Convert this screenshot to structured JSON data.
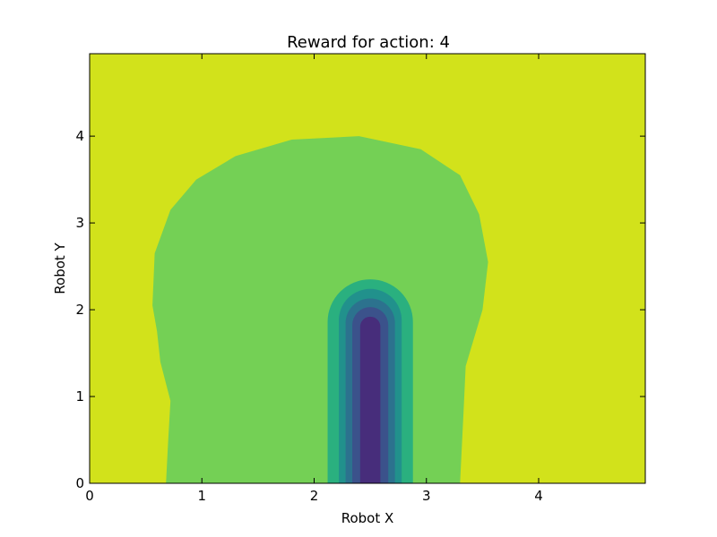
{
  "chart_data": {
    "type": "heatmap",
    "title": "Reward for action: 4",
    "xlabel": "Robot X",
    "ylabel": "Robot Y",
    "xlim": [
      0,
      4.95
    ],
    "ylim": [
      0,
      4.95
    ],
    "xticks": [
      0,
      1,
      2,
      3,
      4
    ],
    "yticks": [
      0,
      1,
      2,
      3,
      4
    ],
    "grid": false,
    "colors": {
      "background": "#d2e21b",
      "mid": "#74d055",
      "band1": "#2ab07f",
      "band2": "#21918c",
      "band3": "#2c728e",
      "band4": "#3b528b",
      "core": "#472d7b"
    },
    "regions": {
      "mid_boundary": [
        [
          0.68,
          0
        ],
        [
          0.7,
          0.5
        ],
        [
          0.72,
          0.95
        ],
        [
          0.63,
          1.4
        ],
        [
          0.6,
          1.75
        ],
        [
          0.56,
          2.05
        ],
        [
          0.58,
          2.65
        ],
        [
          0.72,
          3.15
        ],
        [
          0.95,
          3.5
        ],
        [
          1.3,
          3.77
        ],
        [
          1.8,
          3.96
        ],
        [
          2.4,
          4.0
        ],
        [
          2.95,
          3.85
        ],
        [
          3.3,
          3.55
        ],
        [
          3.47,
          3.1
        ],
        [
          3.55,
          2.55
        ],
        [
          3.5,
          2.0
        ],
        [
          3.35,
          1.35
        ],
        [
          3.33,
          0.8
        ],
        [
          3.3,
          0
        ]
      ],
      "rings": [
        {
          "level": "band1",
          "x_min": 2.12,
          "x_max": 2.88,
          "y_top": 2.35
        },
        {
          "level": "band2",
          "x_min": 2.22,
          "x_max": 2.78,
          "y_top": 2.24
        },
        {
          "level": "band3",
          "x_min": 2.28,
          "x_max": 2.72,
          "y_top": 2.13
        },
        {
          "level": "band4",
          "x_min": 2.34,
          "x_max": 2.66,
          "y_top": 2.03
        },
        {
          "level": "core",
          "x_min": 2.41,
          "x_max": 2.59,
          "y_top": 1.92
        }
      ]
    }
  }
}
